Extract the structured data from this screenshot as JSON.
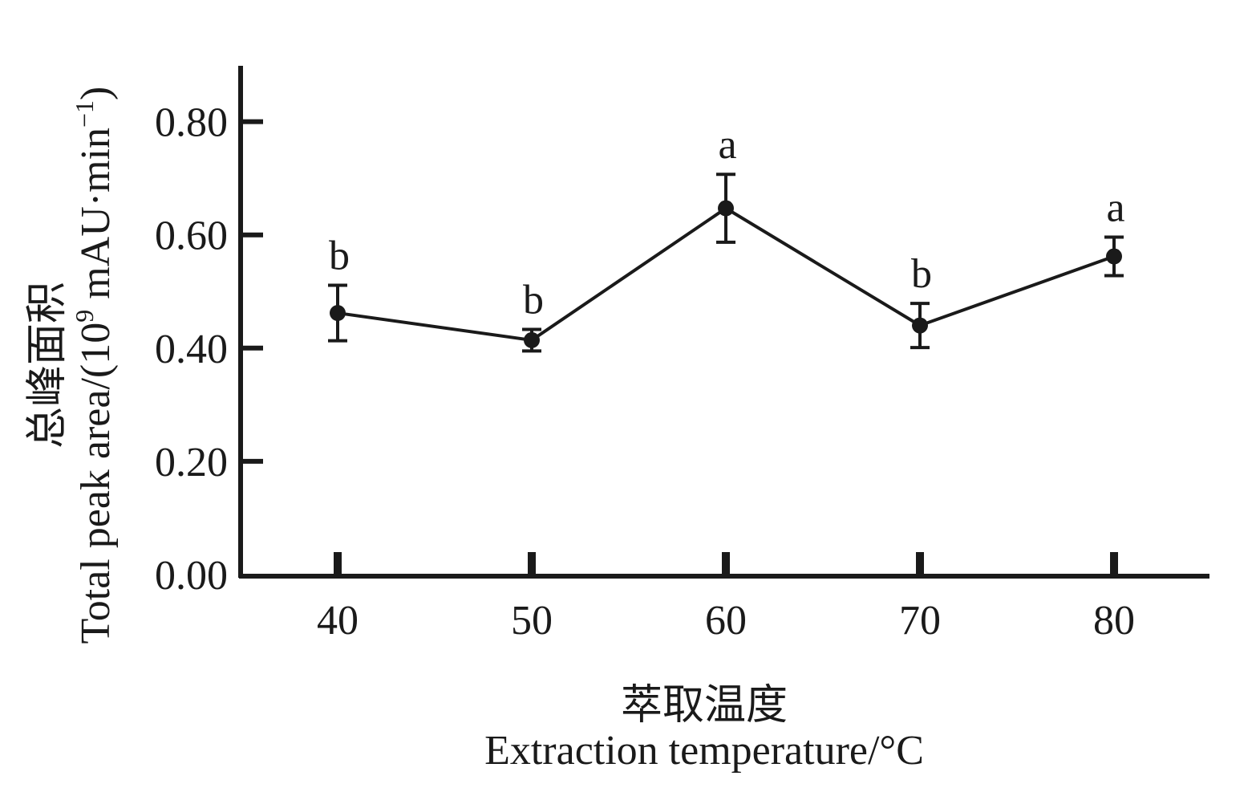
{
  "chart_data": {
    "type": "line",
    "xlabel_cn": "萃取温度",
    "xlabel_en": "Extraction temperature/°C",
    "ylabel_cn": "总峰面积",
    "ylabel_en_prefix": "Total peak area/(10",
    "ylabel_en_sup": "9",
    "ylabel_en_mid": " mAU·min",
    "ylabel_en_sup2": "−1",
    "ylabel_en_suffix": ")",
    "x": [
      40,
      50,
      60,
      70,
      80
    ],
    "x_tick_labels": [
      "40",
      "50",
      "60",
      "70",
      "80"
    ],
    "y_ticks": [
      0.0,
      0.2,
      0.4,
      0.6,
      0.8
    ],
    "y_tick_labels": [
      "0.00",
      "0.20",
      "0.40",
      "0.60",
      "0.80"
    ],
    "ylim": [
      0,
      0.9
    ],
    "grid": false,
    "series": [
      {
        "values": [
          0.462,
          0.414,
          0.647,
          0.44,
          0.562
        ],
        "error": [
          0.049,
          0.019,
          0.06,
          0.039,
          0.034
        ],
        "significance": [
          "b",
          "b",
          "a",
          "b",
          "a"
        ]
      }
    ],
    "colors": {
      "line": "#1a1a1a",
      "axis": "#1a1a1a"
    }
  }
}
